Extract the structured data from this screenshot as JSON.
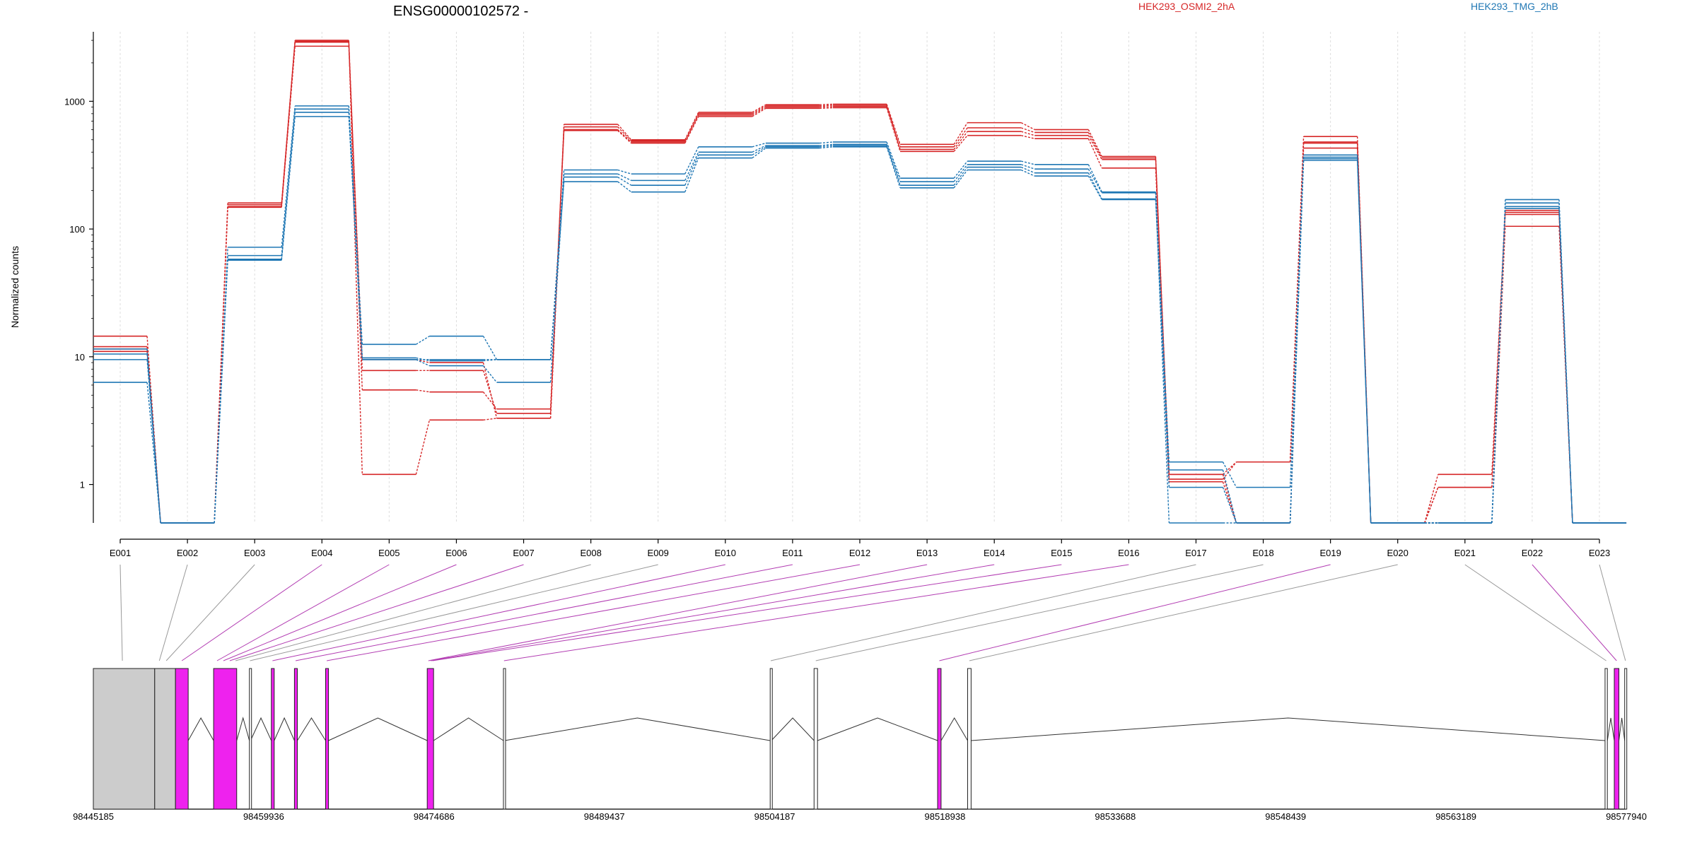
{
  "colors": {
    "group_a": "#d62728",
    "group_b": "#1f77b4",
    "highlight": "#ee22ee",
    "gray_exon": "#cccccc"
  },
  "chart_data": {
    "type": "line",
    "title": "ENSG00000102572 -",
    "ylabel": "Normalized counts",
    "yscale": "log",
    "yticks": [
      1,
      10,
      100,
      1000
    ],
    "ylim": [
      0.5,
      3500
    ],
    "grid": "vertical dotted",
    "legend_position": "top-right",
    "categories": [
      "E001",
      "E002",
      "E003",
      "E004",
      "E005",
      "E006",
      "E007",
      "E008",
      "E009",
      "E010",
      "E011",
      "E012",
      "E013",
      "E014",
      "E015",
      "E016",
      "E017",
      "E018",
      "E019",
      "E020",
      "E021",
      "E022",
      "E023"
    ],
    "groups": [
      {
        "name": "HEK293_OSMI2_2hA",
        "color_key": "group_a",
        "series": [
          [
            14.5,
            0.5,
            160,
            3000,
            1.2,
            3.2,
            3.3,
            660,
            500,
            820,
            940,
            950,
            460,
            680,
            600,
            370,
            1.2,
            1.5,
            530,
            0.5,
            1.2,
            140,
            0.5
          ],
          [
            12,
            0.5,
            155,
            2950,
            7.8,
            7.8,
            3.6,
            630,
            490,
            800,
            920,
            930,
            440,
            620,
            570,
            360,
            1.1,
            1.5,
            480,
            0.5,
            0.95,
            135,
            0.5
          ],
          [
            11.5,
            0.5,
            150,
            2900,
            5.5,
            5.3,
            3.9,
            600,
            480,
            780,
            900,
            910,
            420,
            580,
            540,
            350,
            1.05,
            0.5,
            430,
            0.5,
            0.95,
            130,
            0.5
          ],
          [
            11,
            0.5,
            148,
            2700,
            9.5,
            9.0,
            3.3,
            590,
            470,
            760,
            880,
            890,
            405,
            540,
            510,
            300,
            1.2,
            0.5,
            470,
            0.5,
            0.5,
            105,
            0.5
          ]
        ]
      },
      {
        "name": "HEK293_TMG_2hB",
        "color_key": "group_b",
        "series": [
          [
            11.5,
            0.5,
            72,
            920,
            12.5,
            14.5,
            9.5,
            290,
            270,
            440,
            470,
            480,
            250,
            340,
            320,
            195,
            1.5,
            0.95,
            380,
            0.5,
            0.5,
            170,
            0.5
          ],
          [
            10.5,
            0.5,
            62,
            870,
            9.5,
            9.5,
            9.5,
            270,
            240,
            400,
            450,
            460,
            235,
            320,
            295,
            192,
            0.5,
            0.5,
            365,
            0.5,
            0.5,
            160,
            0.5
          ],
          [
            9.5,
            0.5,
            58,
            820,
            9.5,
            8.5,
            6.3,
            255,
            220,
            380,
            440,
            450,
            220,
            305,
            275,
            172,
            0.95,
            0.5,
            355,
            0.5,
            0.5,
            150,
            0.5
          ],
          [
            6.3,
            0.5,
            57,
            760,
            9.8,
            9.3,
            9.5,
            235,
            195,
            360,
            430,
            440,
            210,
            290,
            260,
            170,
            1.3,
            0.5,
            345,
            0.5,
            0.5,
            145,
            0.5
          ]
        ]
      }
    ],
    "gene_model": {
      "coordinate_labels": [
        "98445185",
        "98459936",
        "98474686",
        "98489437",
        "98504187",
        "98518938",
        "98533688",
        "98548439",
        "98563189",
        "98577940"
      ],
      "coord_start": 98445185,
      "coord_end": 98577940,
      "exons": [
        {
          "start": 98445185,
          "end": 98450500,
          "kind": "gray"
        },
        {
          "start": 98450500,
          "end": 98452300,
          "kind": "gray"
        },
        {
          "start": 98452300,
          "end": 98453400,
          "kind": "magenta"
        },
        {
          "start": 98455600,
          "end": 98457600,
          "kind": "magenta"
        },
        {
          "start": 98458700,
          "end": 98458800,
          "kind": "white"
        },
        {
          "start": 98460600,
          "end": 98460850,
          "kind": "magenta"
        },
        {
          "start": 98462600,
          "end": 98462850,
          "kind": "magenta"
        },
        {
          "start": 98465300,
          "end": 98465550,
          "kind": "magenta"
        },
        {
          "start": 98474100,
          "end": 98474650,
          "kind": "magenta"
        },
        {
          "start": 98480700,
          "end": 98480800,
          "kind": "white"
        },
        {
          "start": 98503800,
          "end": 98503900,
          "kind": "white"
        },
        {
          "start": 98507600,
          "end": 98507900,
          "kind": "white"
        },
        {
          "start": 98518300,
          "end": 98518600,
          "kind": "magenta"
        },
        {
          "start": 98520900,
          "end": 98521200,
          "kind": "white"
        },
        {
          "start": 98576100,
          "end": 98576300,
          "kind": "white"
        },
        {
          "start": 98576900,
          "end": 98577300,
          "kind": "magenta"
        },
        {
          "start": 98577800,
          "end": 98577940,
          "kind": "white"
        }
      ],
      "exon_anchor_coords": [
        98447700,
        98450900,
        98451500,
        98452850,
        98455900,
        98456450,
        98457000,
        98457500,
        98458750,
        98460700,
        98462700,
        98465400,
        98474200,
        98474400,
        98474550,
        98480750,
        98503850,
        98507750,
        98518450,
        98521050,
        98576200,
        98577100,
        98577870
      ],
      "exon_anchor_kinds": [
        "gray",
        "gray",
        "gray",
        "magenta",
        "magenta",
        "magenta",
        "magenta",
        "gray",
        "gray",
        "magenta",
        "magenta",
        "magenta",
        "magenta",
        "magenta",
        "magenta",
        "magenta",
        "gray",
        "gray",
        "magenta",
        "gray",
        "gray",
        "magenta",
        "gray"
      ]
    }
  }
}
